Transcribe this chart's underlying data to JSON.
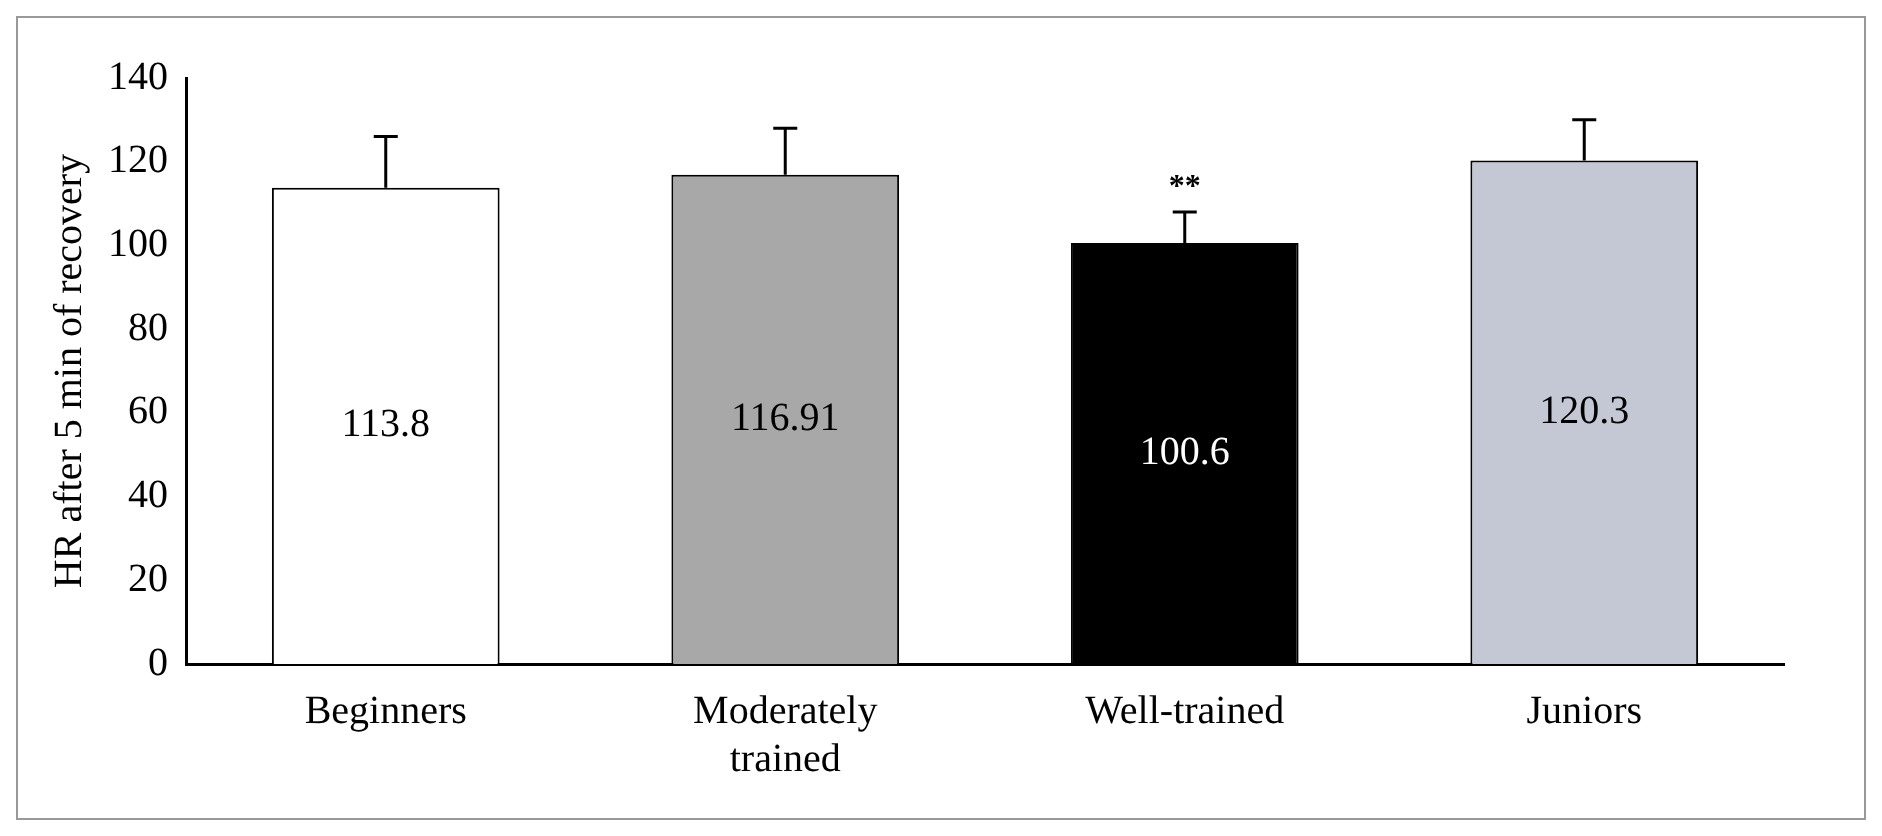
{
  "chart_data": {
    "type": "bar",
    "ylabel": "HR after 5 min of recovery",
    "categories": [
      "Beginners",
      "Moderately trained",
      "Well-trained",
      "Juniors"
    ],
    "values": [
      113.8,
      116.91,
      100.6,
      120.3
    ],
    "colors": [
      "#ffffff",
      "#a8a8a8",
      "#000000",
      "#c4c8d4"
    ],
    "errors": [
      [
        113.8,
        126
      ],
      [
        116.91,
        128
      ],
      [
        100.6,
        108
      ],
      [
        120.3,
        130
      ]
    ],
    "ylim": [
      0,
      140
    ],
    "yticks": [
      0,
      20,
      40,
      60,
      80,
      100,
      120,
      140
    ],
    "data_labels": true,
    "grid": false,
    "legend": false,
    "annotations": [
      {
        "text": "**",
        "x": "Well-trained",
        "y": 108
      }
    ]
  }
}
